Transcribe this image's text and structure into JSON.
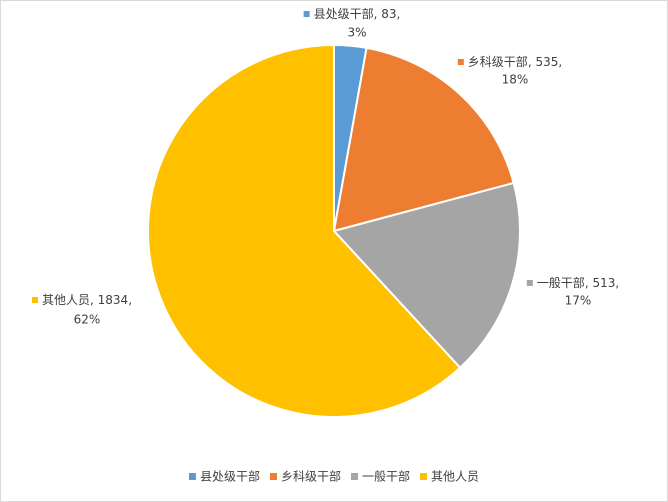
{
  "chart_data": {
    "type": "pie",
    "categories": [
      "县处级干部",
      "乡科级干部",
      "一般干部",
      "其他人员"
    ],
    "values": [
      83,
      535,
      513,
      1834
    ],
    "percent_labels": [
      "3%",
      "18%",
      "17%",
      "62%"
    ],
    "label_separator": ", ",
    "colors": [
      "#5b9bd5",
      "#ed7d31",
      "#a5a5a5",
      "#ffc000"
    ],
    "legend": "bottom"
  }
}
